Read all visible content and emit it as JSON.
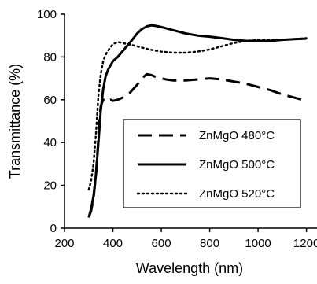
{
  "chart_data": {
    "type": "line",
    "title": "",
    "xlabel": "Wavelength (nm)",
    "ylabel": "Transmittance (%)",
    "xlim": [
      200,
      1250
    ],
    "ylim": [
      0,
      100
    ],
    "xticks": [
      200,
      400,
      600,
      800,
      1000,
      1200
    ],
    "yticks": [
      0,
      20,
      40,
      60,
      80,
      100
    ],
    "grid": false,
    "legend_position": "lower-right",
    "series": [
      {
        "name": "ZnMgO 480°C",
        "style": "dashed",
        "color": "#000000",
        "x": [
          300,
          310,
          320,
          330,
          340,
          345,
          350,
          360,
          370,
          380,
          390,
          400,
          420,
          440,
          460,
          480,
          500,
          520,
          540,
          560,
          580,
          600,
          620,
          650,
          700,
          750,
          800,
          850,
          900,
          950,
          1000,
          1050,
          1100,
          1150,
          1200
        ],
        "y": [
          5,
          8,
          14,
          25,
          42,
          52,
          57,
          60,
          59.5,
          59,
          60,
          59.5,
          60,
          61,
          62,
          64.5,
          67,
          70,
          72,
          71.5,
          70.5,
          70,
          69.5,
          69,
          69,
          69.5,
          70,
          69.5,
          68.5,
          67.5,
          66,
          64.5,
          62.5,
          61,
          59.5
        ]
      },
      {
        "name": "ZnMgO 500°C",
        "style": "solid",
        "color": "#000000",
        "x": [
          300,
          310,
          320,
          330,
          340,
          350,
          360,
          370,
          380,
          400,
          420,
          450,
          480,
          500,
          520,
          540,
          560,
          580,
          600,
          650,
          700,
          750,
          800,
          850,
          900,
          950,
          1000,
          1050,
          1100,
          1150,
          1200
        ],
        "y": [
          5,
          9,
          15,
          25,
          40,
          55,
          65,
          71,
          74,
          78,
          80,
          84,
          88,
          91,
          93,
          94.3,
          94.8,
          94.5,
          94,
          92.5,
          91,
          90,
          89.5,
          88.8,
          88,
          87.5,
          87.5,
          87.5,
          88,
          88.3,
          88.6
        ]
      },
      {
        "name": "ZnMgO 520°C",
        "style": "dotted",
        "color": "#000000",
        "x": [
          300,
          310,
          320,
          330,
          340,
          350,
          360,
          370,
          380,
          390,
          400,
          420,
          440,
          460,
          480,
          500,
          550,
          600,
          650,
          700,
          750,
          800,
          850,
          900,
          950,
          1000,
          1050,
          1100,
          1150,
          1200
        ],
        "y": [
          18,
          22,
          30,
          44,
          62,
          72,
          78,
          81,
          83,
          84.5,
          86,
          87,
          86.5,
          86,
          85.5,
          85,
          83.5,
          82.5,
          82,
          82,
          82.5,
          83.5,
          85,
          86.5,
          87.5,
          88,
          88,
          88,
          88.3,
          88.8
        ]
      }
    ]
  }
}
